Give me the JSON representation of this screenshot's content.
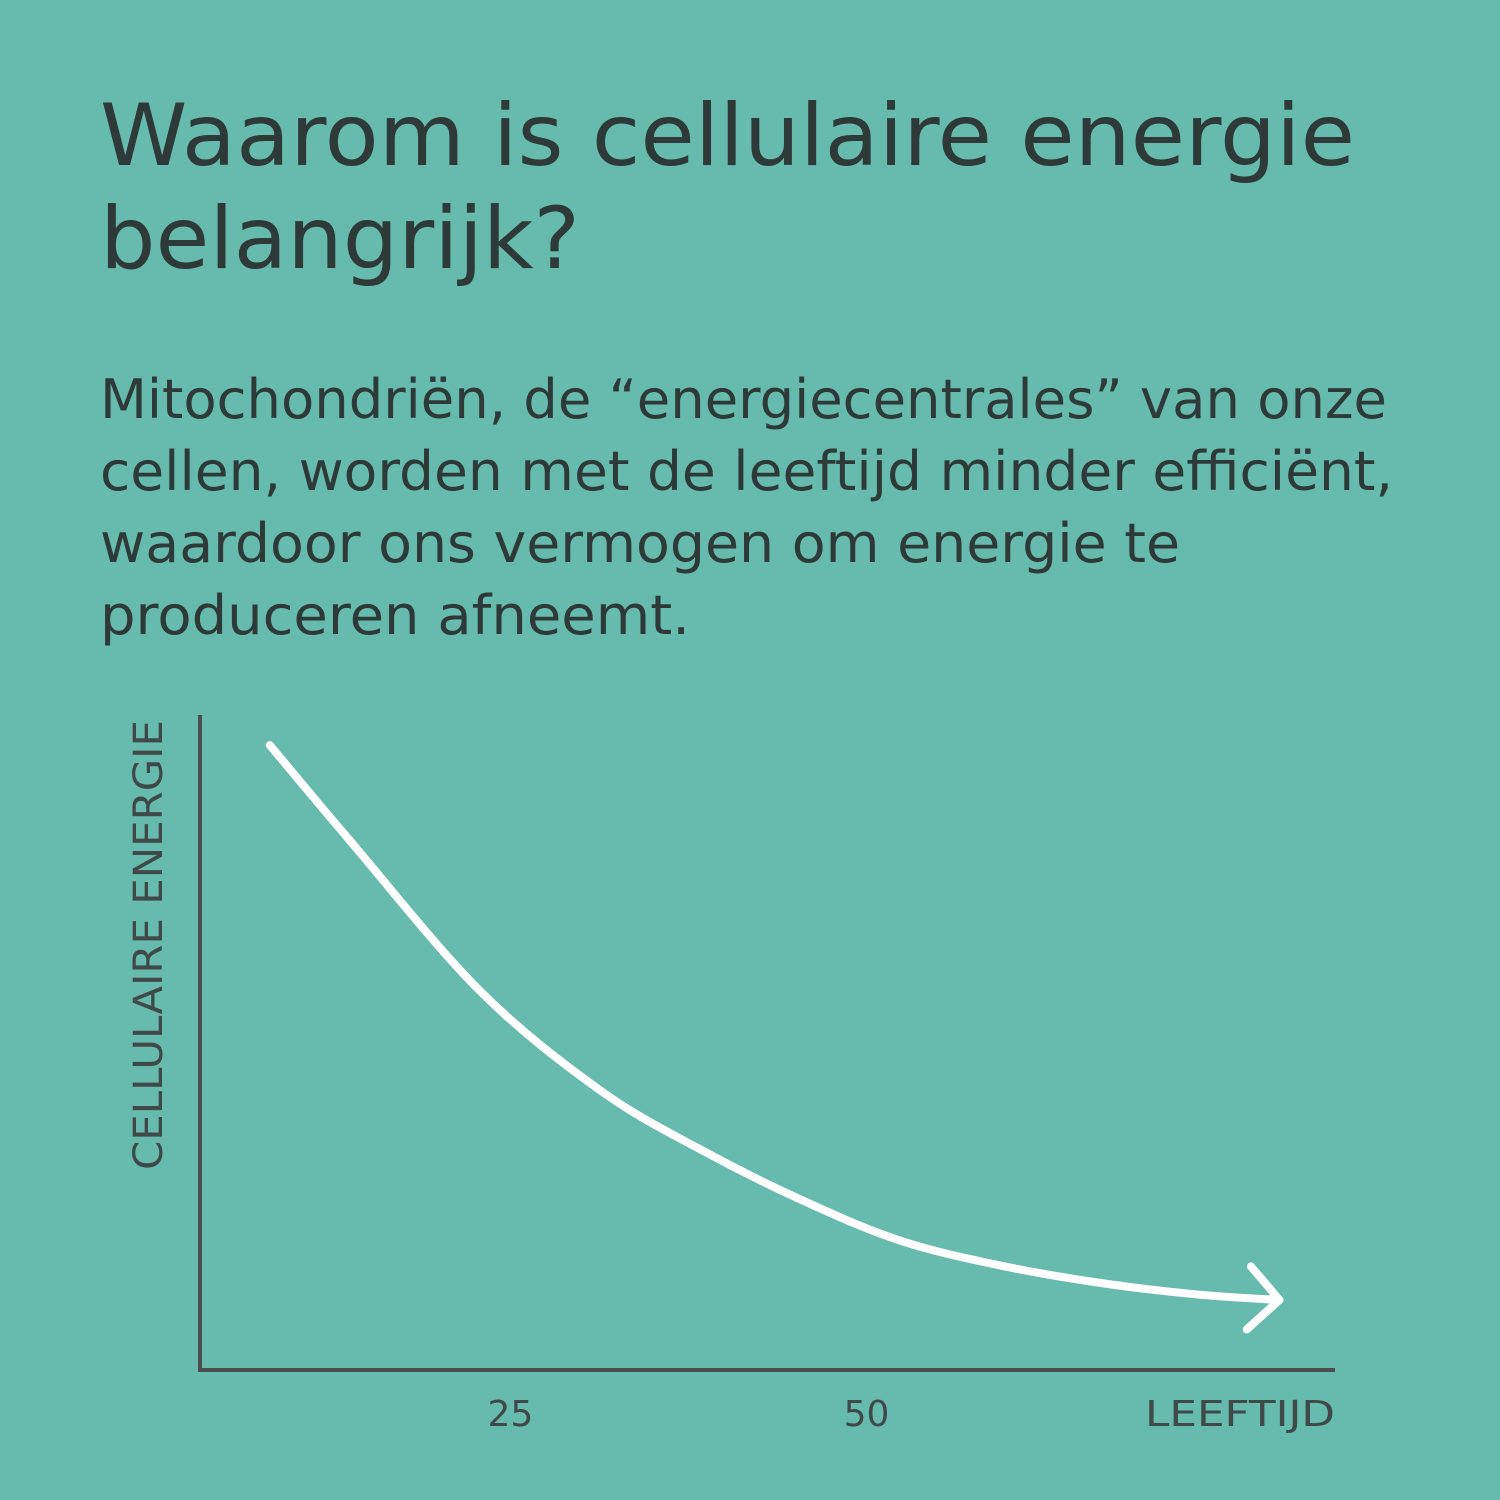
{
  "chart_data": {
    "type": "line",
    "title": [
      "Waarom is cellulaire energie",
      "belangrijk?"
    ],
    "description": [
      "Mitochondriën, de “energiecentrales” van onze",
      "cellen, worden met de leeftijd minder efficiënt,",
      "waardoor ons vermogen om energie te",
      "produceren afneemt."
    ],
    "xlabel": "LEEFTIJD",
    "ylabel": "CELLULAIRE ENERGIE",
    "x": [
      8.1,
      13.7,
      22.8,
      31.3,
      38.4,
      45.4,
      52.3,
      59.3,
      66.4,
      73.4,
      79.0
    ],
    "series": [
      {
        "color": "#ffffff",
        "values": [
          95.4,
          80.9,
          58,
          42.7,
          33.6,
          26,
          19.8,
          16,
          13.3,
          11.5,
          10.7
        ]
      }
    ],
    "xlim": [
      3.2,
      82.9
    ],
    "xticks": [
      25,
      50
    ],
    "ylim": [
      0,
      100
    ]
  }
}
